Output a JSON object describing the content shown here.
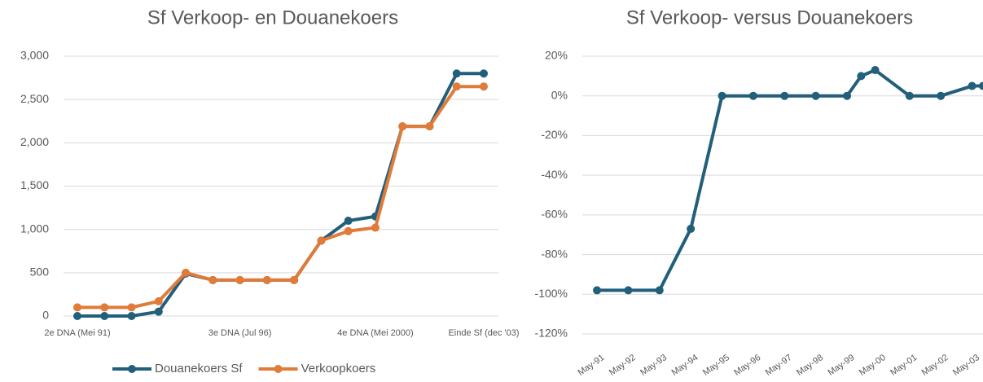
{
  "chart_data": [
    {
      "type": "line",
      "title": "Sf Verkoop- en Douanekoers",
      "categories": [
        "2e DNA (Mei 91)",
        null,
        null,
        null,
        null,
        null,
        "3e DNA (Jul 96)",
        null,
        null,
        null,
        null,
        "4e DNA (Mei 2000)",
        null,
        null,
        null,
        "Einde Sf (dec '03)"
      ],
      "series": [
        {
          "name": "Douanekoers Sf",
          "color": "#215f7a",
          "values": [
            0,
            0,
            0,
            50,
            490,
            415,
            415,
            415,
            415,
            870,
            1100,
            1150,
            2190,
            2190,
            2800,
            2800
          ]
        },
        {
          "name": "Verkoopkoers",
          "color": "#e07b39",
          "values": [
            100,
            100,
            100,
            170,
            500,
            415,
            415,
            415,
            415,
            870,
            980,
            1020,
            2190,
            2190,
            2650,
            2650
          ]
        }
      ],
      "ylim": [
        0,
        3000
      ],
      "yticks": [
        0,
        500,
        {
          "value": 1000,
          "label": "1,000"
        },
        {
          "value": 1500,
          "label": "1,500"
        },
        {
          "value": 2000,
          "label": "2,000"
        },
        {
          "value": 2500,
          "label": "2,500"
        },
        {
          "value": 3000,
          "label": "3,000"
        }
      ],
      "grid": true,
      "legend": "bottom"
    },
    {
      "type": "line",
      "title": "Sf Verkoop- versus Douanekoers",
      "x": [
        1991.4,
        1992.4,
        1993.4,
        1994.4,
        1995.4,
        1996.4,
        1997.4,
        1998.4,
        1999.4,
        1999.85,
        2000.3,
        2001.4,
        2002.4,
        2003.4,
        2003.75
      ],
      "series": [
        {
          "color": "#215f7a",
          "values": [
            -98,
            -98,
            -98,
            -67,
            0,
            0,
            0,
            0,
            0,
            10,
            13,
            0,
            0,
            5,
            5
          ]
        }
      ],
      "xlim": [
        1990.93,
        2003.75
      ],
      "xticks": [
        {
          "value": 1991.4,
          "label": "May-91"
        },
        {
          "value": 1992.4,
          "label": "May-92"
        },
        {
          "value": 1993.4,
          "label": "May-93"
        },
        {
          "value": 1994.4,
          "label": "May-94"
        },
        {
          "value": 1995.4,
          "label": "May-95"
        },
        {
          "value": 1996.4,
          "label": "May-96"
        },
        {
          "value": 1997.4,
          "label": "May-97"
        },
        {
          "value": 1998.4,
          "label": "May-98"
        },
        {
          "value": 1999.4,
          "label": "May-99"
        },
        {
          "value": 2000.4,
          "label": "May-00"
        },
        {
          "value": 2001.4,
          "label": "May-01"
        },
        {
          "value": 2002.4,
          "label": "May-02"
        },
        {
          "value": 2003.4,
          "label": "May-03"
        }
      ],
      "ylim": [
        -120,
        20
      ],
      "yticks": [
        {
          "value": -120,
          "label": "-120%"
        },
        {
          "value": -100,
          "label": "-100%"
        },
        {
          "value": -80,
          "label": "-80%"
        },
        {
          "value": -60,
          "label": "-60%"
        },
        {
          "value": -40,
          "label": "-40%"
        },
        {
          "value": -20,
          "label": "-20%"
        },
        {
          "value": 0,
          "label": "0%"
        },
        {
          "value": 20,
          "label": "20%"
        }
      ],
      "grid": true
    }
  ]
}
